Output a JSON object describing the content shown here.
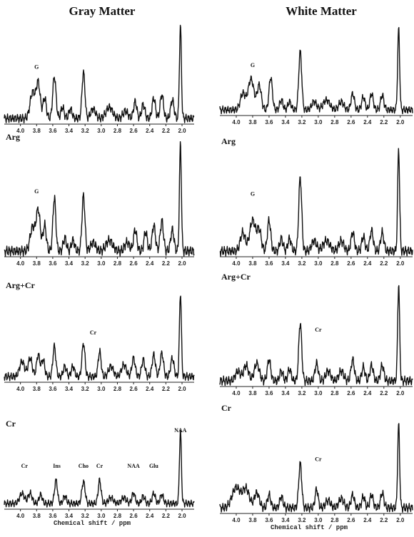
{
  "columns": [
    "Gray Matter",
    "White Matter"
  ],
  "chart_data": [
    {
      "type": "line",
      "panel": "gray-1",
      "row_label": "",
      "xlabel": "",
      "peak_labels": [
        {
          "text": "G",
          "ppm": 3.8
        }
      ],
      "x_ticks": [
        "4.0",
        "3.8",
        "3.6",
        "3.4",
        "3.2",
        "3.0",
        "2.8",
        "2.6",
        "2.4",
        "2.2",
        "2.0"
      ],
      "xlim": [
        4.2,
        1.85
      ],
      "peaks": [
        [
          3.85,
          0.28,
          0.03
        ],
        [
          3.78,
          0.38,
          0.025
        ],
        [
          3.7,
          0.22,
          0.02
        ],
        [
          3.58,
          0.45,
          0.02
        ],
        [
          3.48,
          0.12,
          0.02
        ],
        [
          3.38,
          0.1,
          0.02
        ],
        [
          3.22,
          0.5,
          0.018
        ],
        [
          3.1,
          0.1,
          0.03
        ],
        [
          2.9,
          0.12,
          0.04
        ],
        [
          2.7,
          0.08,
          0.03
        ],
        [
          2.58,
          0.18,
          0.02
        ],
        [
          2.48,
          0.15,
          0.02
        ],
        [
          2.35,
          0.22,
          0.02
        ],
        [
          2.25,
          0.26,
          0.02
        ],
        [
          2.12,
          0.2,
          0.02
        ],
        [
          2.02,
          1.0,
          0.012
        ]
      ]
    },
    {
      "type": "line",
      "panel": "white-1",
      "row_label": "",
      "xlabel": "",
      "peak_labels": [
        {
          "text": "G",
          "ppm": 3.8
        }
      ],
      "x_ticks": [
        "4.0",
        "3.8",
        "3.6",
        "3.4",
        "3.2",
        "3.0",
        "2.8",
        "2.6",
        "2.4",
        "2.2",
        "2.0"
      ],
      "xlim": [
        4.2,
        1.85
      ],
      "peaks": [
        [
          3.92,
          0.2,
          0.03
        ],
        [
          3.82,
          0.38,
          0.035
        ],
        [
          3.72,
          0.3,
          0.025
        ],
        [
          3.58,
          0.4,
          0.02
        ],
        [
          3.45,
          0.12,
          0.02
        ],
        [
          3.35,
          0.1,
          0.02
        ],
        [
          3.22,
          0.72,
          0.018
        ],
        [
          3.05,
          0.1,
          0.03
        ],
        [
          2.9,
          0.12,
          0.04
        ],
        [
          2.72,
          0.1,
          0.03
        ],
        [
          2.58,
          0.2,
          0.02
        ],
        [
          2.45,
          0.16,
          0.02
        ],
        [
          2.35,
          0.2,
          0.02
        ],
        [
          2.22,
          0.18,
          0.02
        ],
        [
          2.02,
          1.0,
          0.012
        ]
      ]
    },
    {
      "type": "line",
      "panel": "gray-2",
      "row_label": "Arg",
      "xlabel": "",
      "peak_labels": [
        {
          "text": "G",
          "ppm": 3.8
        }
      ],
      "x_ticks": [
        "4.0",
        "3.8",
        "3.6",
        "3.4",
        "3.2",
        "3.0",
        "2.8",
        "2.6",
        "2.4",
        "2.2",
        "2.0"
      ],
      "xlim": [
        4.2,
        1.85
      ],
      "peaks": [
        [
          3.85,
          0.22,
          0.03
        ],
        [
          3.78,
          0.38,
          0.025
        ],
        [
          3.7,
          0.24,
          0.02
        ],
        [
          3.58,
          0.5,
          0.018
        ],
        [
          3.45,
          0.12,
          0.02
        ],
        [
          3.35,
          0.1,
          0.02
        ],
        [
          3.22,
          0.52,
          0.018
        ],
        [
          3.1,
          0.08,
          0.03
        ],
        [
          2.9,
          0.1,
          0.04
        ],
        [
          2.68,
          0.08,
          0.03
        ],
        [
          2.58,
          0.2,
          0.02
        ],
        [
          2.45,
          0.18,
          0.02
        ],
        [
          2.35,
          0.24,
          0.02
        ],
        [
          2.25,
          0.28,
          0.02
        ],
        [
          2.12,
          0.2,
          0.02
        ],
        [
          2.02,
          1.0,
          0.012
        ]
      ]
    },
    {
      "type": "line",
      "panel": "white-2",
      "row_label": "Arg",
      "xlabel": "",
      "peak_labels": [
        {
          "text": "G",
          "ppm": 3.8
        }
      ],
      "x_ticks": [
        "4.0",
        "3.8",
        "3.6",
        "3.4",
        "3.2",
        "3.0",
        "2.8",
        "2.6",
        "2.4",
        "2.2",
        "2.0"
      ],
      "xlim": [
        4.2,
        1.85
      ],
      "peaks": [
        [
          3.92,
          0.18,
          0.03
        ],
        [
          3.8,
          0.3,
          0.035
        ],
        [
          3.72,
          0.2,
          0.025
        ],
        [
          3.6,
          0.3,
          0.02
        ],
        [
          3.45,
          0.12,
          0.02
        ],
        [
          3.35,
          0.12,
          0.02
        ],
        [
          3.22,
          0.72,
          0.018
        ],
        [
          3.05,
          0.1,
          0.03
        ],
        [
          2.9,
          0.1,
          0.04
        ],
        [
          2.72,
          0.1,
          0.03
        ],
        [
          2.58,
          0.18,
          0.02
        ],
        [
          2.45,
          0.14,
          0.02
        ],
        [
          2.35,
          0.2,
          0.02
        ],
        [
          2.22,
          0.18,
          0.02
        ],
        [
          2.02,
          1.0,
          0.012
        ]
      ]
    },
    {
      "type": "line",
      "panel": "gray-3",
      "row_label": "Arg+Cr",
      "xlabel": "",
      "peak_labels": [
        {
          "text": "Cr",
          "ppm": 3.1
        }
      ],
      "x_ticks": [
        "4.0",
        "3.8",
        "3.6",
        "3.4",
        "3.2",
        "3.0",
        "2.8",
        "2.6",
        "2.4",
        "2.2",
        "2.0"
      ],
      "xlim": [
        4.2,
        1.85
      ],
      "peaks": [
        [
          3.98,
          0.18,
          0.03
        ],
        [
          3.88,
          0.22,
          0.025
        ],
        [
          3.78,
          0.26,
          0.02
        ],
        [
          3.72,
          0.2,
          0.02
        ],
        [
          3.58,
          0.36,
          0.018
        ],
        [
          3.45,
          0.12,
          0.02
        ],
        [
          3.35,
          0.12,
          0.02
        ],
        [
          3.22,
          0.4,
          0.018
        ],
        [
          3.02,
          0.3,
          0.018
        ],
        [
          2.88,
          0.12,
          0.03
        ],
        [
          2.72,
          0.14,
          0.03
        ],
        [
          2.6,
          0.22,
          0.02
        ],
        [
          2.48,
          0.2,
          0.02
        ],
        [
          2.35,
          0.26,
          0.02
        ],
        [
          2.25,
          0.28,
          0.02
        ],
        [
          2.12,
          0.22,
          0.02
        ],
        [
          2.02,
          1.0,
          0.012
        ]
      ]
    },
    {
      "type": "line",
      "panel": "white-3",
      "row_label": "Arg+Cr",
      "xlabel": "",
      "peak_labels": [
        {
          "text": "Cr",
          "ppm": 3.0
        }
      ],
      "x_ticks": [
        "4.0",
        "3.8",
        "3.6",
        "3.4",
        "3.2",
        "3.0",
        "2.8",
        "2.6",
        "2.4",
        "2.2",
        "2.0"
      ],
      "xlim": [
        4.2,
        1.85
      ],
      "peaks": [
        [
          3.98,
          0.1,
          0.03
        ],
        [
          3.88,
          0.16,
          0.03
        ],
        [
          3.75,
          0.18,
          0.03
        ],
        [
          3.6,
          0.22,
          0.02
        ],
        [
          3.45,
          0.1,
          0.02
        ],
        [
          3.35,
          0.12,
          0.02
        ],
        [
          3.22,
          0.6,
          0.018
        ],
        [
          3.02,
          0.18,
          0.02
        ],
        [
          2.88,
          0.1,
          0.03
        ],
        [
          2.72,
          0.1,
          0.03
        ],
        [
          2.58,
          0.22,
          0.02
        ],
        [
          2.45,
          0.14,
          0.02
        ],
        [
          2.35,
          0.16,
          0.02
        ],
        [
          2.22,
          0.16,
          0.02
        ],
        [
          2.02,
          1.0,
          0.012
        ]
      ]
    },
    {
      "type": "line",
      "panel": "gray-4",
      "row_label": "Cr",
      "xlabel": "Chemical shift / ppm",
      "peak_labels": [
        {
          "text": "Cr",
          "ppm": 3.95
        },
        {
          "text": "Ins",
          "ppm": 3.55
        },
        {
          "text": "Cho",
          "ppm": 3.22
        },
        {
          "text": "Cr",
          "ppm": 3.02
        },
        {
          "text": "NAA",
          "ppm": 2.6
        },
        {
          "text": "Glu",
          "ppm": 2.35
        },
        {
          "text": "NAA",
          "ppm": 2.02
        }
      ],
      "x_ticks": [
        "4.0",
        "3.8",
        "3.6",
        "3.4",
        "3.2",
        "3.0",
        "2.8",
        "2.6",
        "2.4",
        "2.2",
        "2.0"
      ],
      "xlim": [
        4.2,
        1.85
      ],
      "peaks": [
        [
          3.98,
          0.14,
          0.03
        ],
        [
          3.88,
          0.14,
          0.025
        ],
        [
          3.75,
          0.12,
          0.02
        ],
        [
          3.56,
          0.32,
          0.018
        ],
        [
          3.45,
          0.1,
          0.02
        ],
        [
          3.22,
          0.3,
          0.02
        ],
        [
          3.02,
          0.32,
          0.018
        ],
        [
          2.88,
          0.08,
          0.03
        ],
        [
          2.72,
          0.08,
          0.03
        ],
        [
          2.6,
          0.14,
          0.02
        ],
        [
          2.48,
          0.1,
          0.02
        ],
        [
          2.35,
          0.14,
          0.02
        ],
        [
          2.25,
          0.12,
          0.02
        ],
        [
          2.02,
          1.0,
          0.012
        ]
      ]
    },
    {
      "type": "line",
      "panel": "white-4",
      "row_label": "Cr",
      "xlabel": "Chemical shift / ppm",
      "peak_labels": [
        {
          "text": "Cr",
          "ppm": 3.0
        }
      ],
      "x_ticks": [
        "4.0",
        "3.8",
        "3.6",
        "3.4",
        "3.2",
        "3.0",
        "2.8",
        "2.6",
        "2.4",
        "2.2",
        "2.0"
      ],
      "xlim": [
        4.2,
        1.85
      ],
      "peaks": [
        [
          4.0,
          0.22,
          0.05
        ],
        [
          3.88,
          0.2,
          0.04
        ],
        [
          3.75,
          0.16,
          0.03
        ],
        [
          3.6,
          0.14,
          0.02
        ],
        [
          3.45,
          0.12,
          0.02
        ],
        [
          3.22,
          0.48,
          0.018
        ],
        [
          3.02,
          0.2,
          0.018
        ],
        [
          2.88,
          0.08,
          0.03
        ],
        [
          2.72,
          0.1,
          0.03
        ],
        [
          2.58,
          0.14,
          0.02
        ],
        [
          2.45,
          0.12,
          0.02
        ],
        [
          2.35,
          0.14,
          0.02
        ],
        [
          2.22,
          0.16,
          0.02
        ],
        [
          2.02,
          0.9,
          0.012
        ]
      ]
    }
  ]
}
